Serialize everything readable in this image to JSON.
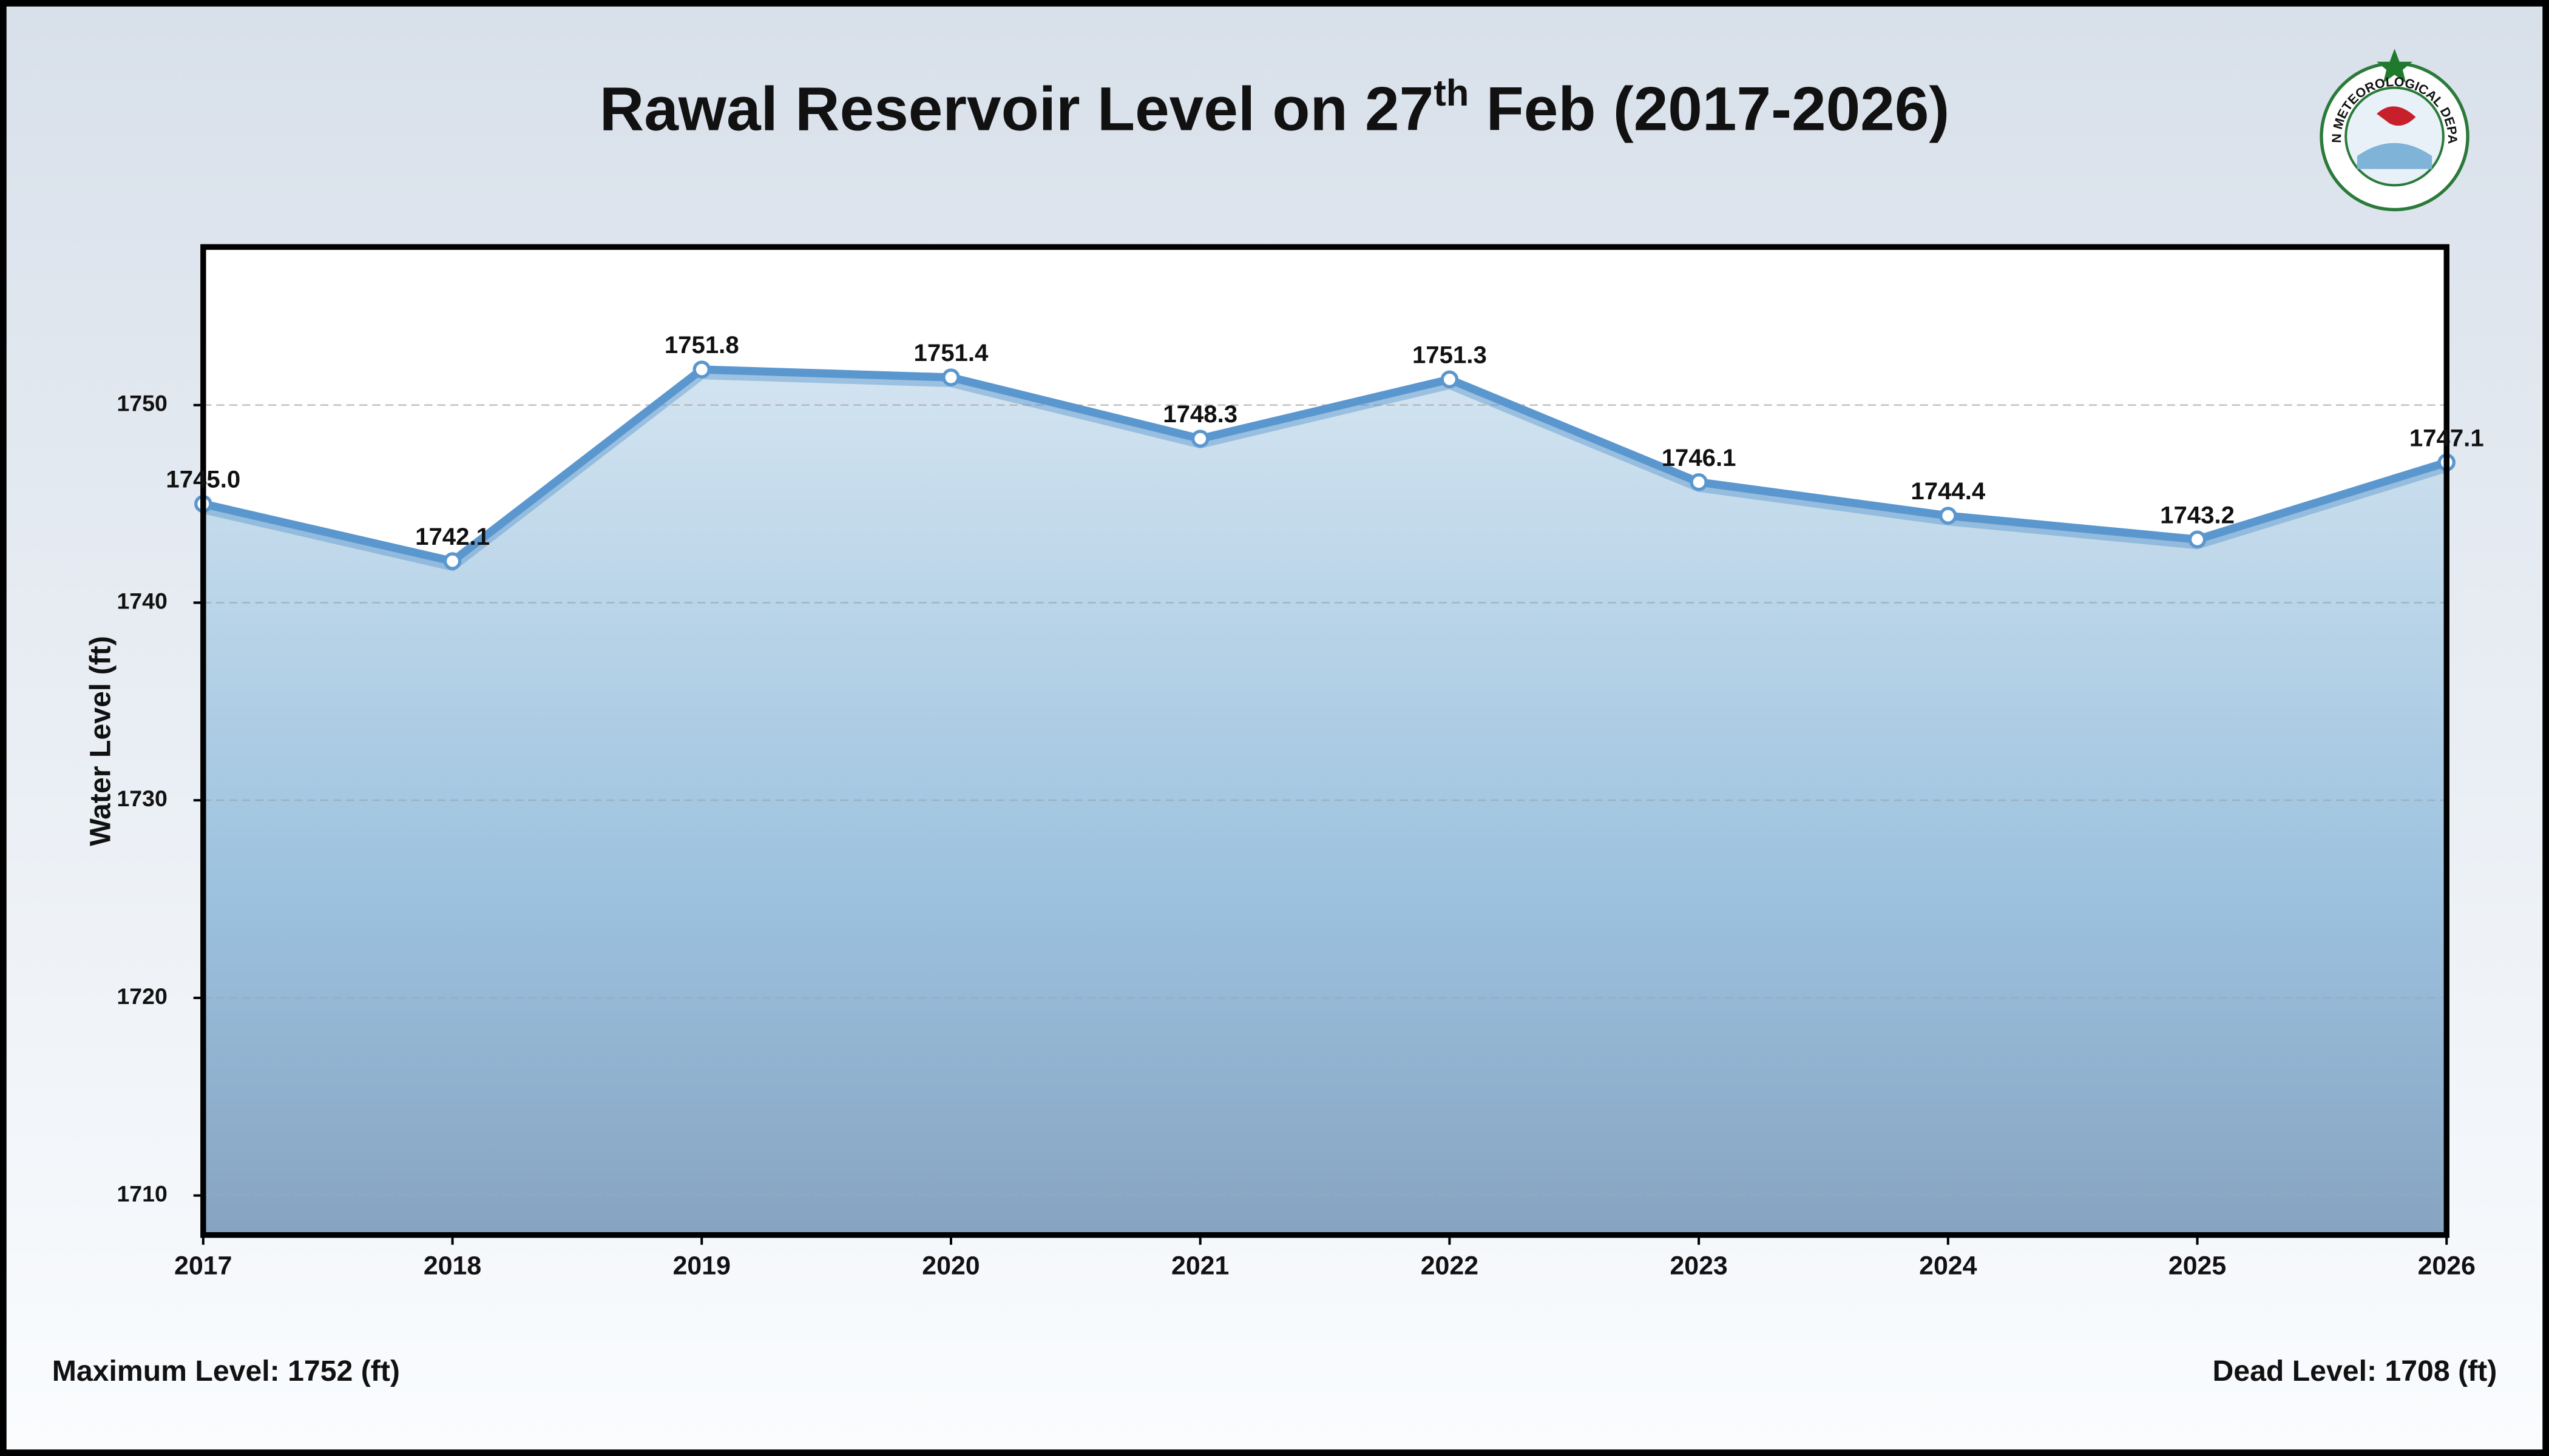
{
  "chart_data": {
    "type": "area",
    "title": [
      "Rawal Reservoir Level on 27",
      "th",
      " Feb (2017-2026)"
    ],
    "y_label": "Water Level (ft)",
    "x": [
      2017,
      2018,
      2019,
      2020,
      2021,
      2022,
      2023,
      2024,
      2025,
      2026
    ],
    "values": [
      1745.0,
      1742.1,
      1751.8,
      1751.4,
      1748.3,
      1751.3,
      1746.1,
      1744.4,
      1743.2,
      1747.1
    ],
    "value_labels": [
      "1745.0",
      "1742.1",
      "1751.8",
      "1751.4",
      "1748.3",
      "1751.3",
      "1746.1",
      "1744.4",
      "1743.2",
      "1747.1"
    ],
    "color": "#5b97cf",
    "xlim": [
      2017,
      2026
    ],
    "xticks": [
      2017,
      2018,
      2019,
      2020,
      2021,
      2022,
      2023,
      2024,
      2025,
      2026
    ],
    "ylim": [
      1708,
      1758
    ],
    "yticks": [
      1710,
      1720,
      1730,
      1740,
      1750
    ],
    "grid": true,
    "annotations": [
      "Maximum Level: 1752 (ft)",
      "Dead Level: 1708 (ft)"
    ],
    "logo_text": "PAKISTAN METEOROLOGICAL DEPARTMENT"
  }
}
